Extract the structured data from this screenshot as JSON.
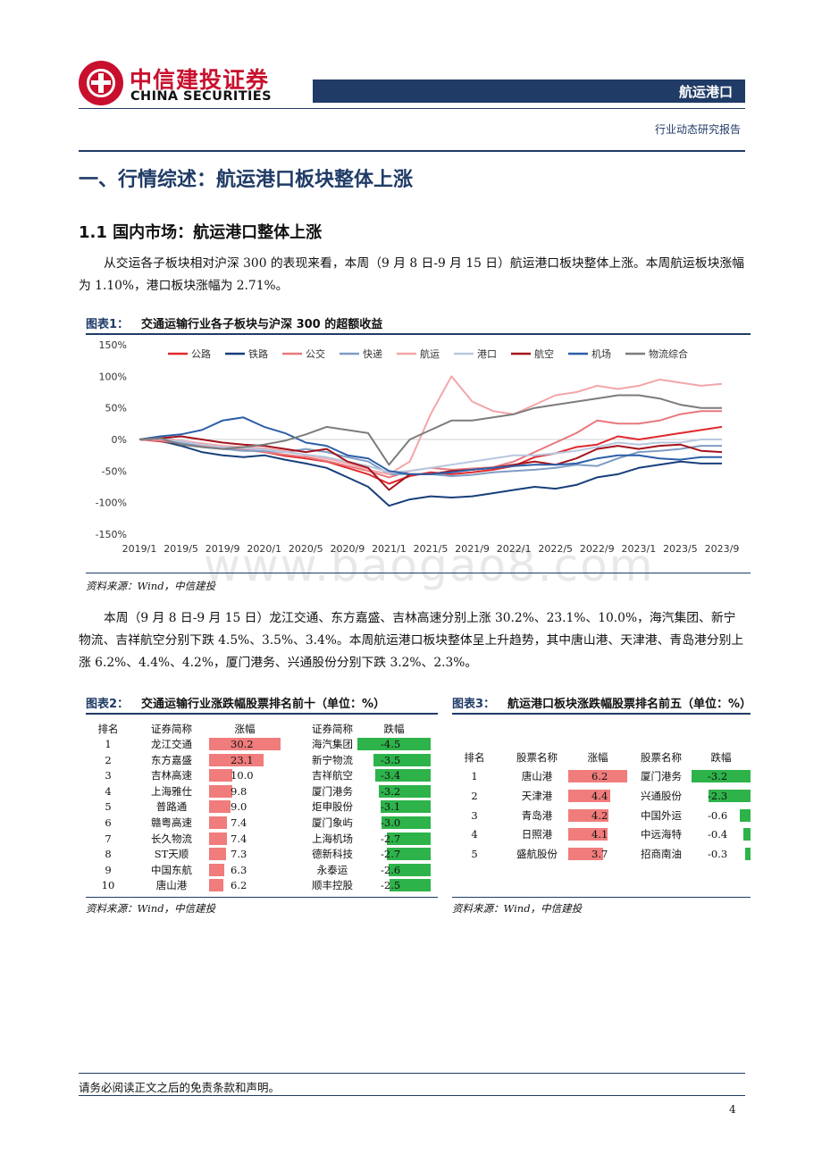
{
  "header": {
    "logo_cn": "中信建投证券",
    "logo_en": "CHINA SECURITIES",
    "section": "航运港口",
    "report_type": "行业动态研究报告"
  },
  "section_title": "一、行情综述：航运港口板块整体上涨",
  "subsection_title": "1.1 国内市场：航运港口整体上涨",
  "para1": "从交运各子板块相对沪深 300 的表现来看，本周（9 月 8 日-9 月 15 日）航运港口板块整体上涨。本周航运板块涨幅为 1.10%，港口板块涨幅为 2.71%。",
  "fig1": {
    "num": "图表1：",
    "title": "交通运输行业各子板块与沪深 300 的超额收益",
    "source": "资料来源：Wind，中信建投"
  },
  "para2": "本周（9 月 8 日-9 月 15 日）龙江交通、东方嘉盛、吉林高速分别上涨 30.2%、23.1%、10.0%，海汽集团、新宁物流、吉祥航空分别下跌 4.5%、3.5%、3.4%。本周航运港口板块整体呈上升趋势，其中唐山港、天津港、青岛港分别上涨 6.2%、4.4%、4.2%，厦门港务、兴通股份分别下跌 3.2%、2.3%。",
  "fig2": {
    "num": "图表2：",
    "title": "交通运输行业涨跌幅股票排名前十（单位：%）",
    "headers": [
      "排名",
      "证券简称",
      "涨幅",
      "证券简称",
      "跌幅"
    ],
    "rows": [
      {
        "rank": "1",
        "up_name": "龙江交通",
        "up": 30.2,
        "up_label": "30.2",
        "down_name": "海汽集团",
        "down": -4.5,
        "down_label": "-4.5"
      },
      {
        "rank": "2",
        "up_name": "东方嘉盛",
        "up": 23.1,
        "up_label": "23.1",
        "down_name": "新宁物流",
        "down": -3.5,
        "down_label": "-3.5"
      },
      {
        "rank": "3",
        "up_name": "吉林高速",
        "up": 10.0,
        "up_label": "10.0",
        "down_name": "吉祥航空",
        "down": -3.4,
        "down_label": "-3.4"
      },
      {
        "rank": "4",
        "up_name": "上海雅仕",
        "up": 9.8,
        "up_label": "9.8",
        "down_name": "厦门港务",
        "down": -3.2,
        "down_label": "-3.2"
      },
      {
        "rank": "5",
        "up_name": "普路通",
        "up": 9.0,
        "up_label": "9.0",
        "down_name": "炬申股份",
        "down": -3.1,
        "down_label": "-3.1"
      },
      {
        "rank": "6",
        "up_name": "赣粤高速",
        "up": 7.4,
        "up_label": "7.4",
        "down_name": "厦门象屿",
        "down": -3.0,
        "down_label": "-3.0"
      },
      {
        "rank": "7",
        "up_name": "长久物流",
        "up": 7.4,
        "up_label": "7.4",
        "down_name": "上海机场",
        "down": -2.7,
        "down_label": "-2.7"
      },
      {
        "rank": "8",
        "up_name": "ST天顺",
        "up": 7.3,
        "up_label": "7.3",
        "down_name": "德新科技",
        "down": -2.7,
        "down_label": "-2.7"
      },
      {
        "rank": "9",
        "up_name": "中国东航",
        "up": 6.3,
        "up_label": "6.3",
        "down_name": "永泰运",
        "down": -2.6,
        "down_label": "-2.6"
      },
      {
        "rank": "10",
        "up_name": "唐山港",
        "up": 6.2,
        "up_label": "6.2",
        "down_name": "顺丰控股",
        "down": -2.5,
        "down_label": "-2.5"
      }
    ],
    "source": "资料来源：Wind，中信建投"
  },
  "fig3": {
    "num": "图表3：",
    "title": "航运港口板块涨跌幅股票排名前五（单位：%）",
    "headers": [
      "排名",
      "股票名称",
      "涨幅",
      "股票名称",
      "跌幅"
    ],
    "rows": [
      {
        "rank": "1",
        "up_name": "唐山港",
        "up": 6.2,
        "up_label": "6.2",
        "down_name": "厦门港务",
        "down": -3.2,
        "down_label": "-3.2"
      },
      {
        "rank": "2",
        "up_name": "天津港",
        "up": 4.4,
        "up_label": "4.4",
        "down_name": "兴通股份",
        "down": -2.3,
        "down_label": "-2.3"
      },
      {
        "rank": "3",
        "up_name": "青岛港",
        "up": 4.2,
        "up_label": "4.2",
        "down_name": "中国外运",
        "down": -0.6,
        "down_label": "-0.6"
      },
      {
        "rank": "4",
        "up_name": "日照港",
        "up": 4.1,
        "up_label": "4.1",
        "down_name": "中远海特",
        "down": -0.4,
        "down_label": "-0.4"
      },
      {
        "rank": "5",
        "up_name": "盛航股份",
        "up": 3.7,
        "up_label": "3.7",
        "down_name": "招商南油",
        "down": -0.3,
        "down_label": "-0.3"
      }
    ],
    "source": "资料来源：Wind，中信建投"
  },
  "chart_data": {
    "type": "line",
    "title": "",
    "xlabel": "",
    "ylabel": "",
    "ylim": [
      -150,
      150
    ],
    "yticks": [
      "150%",
      "100%",
      "50%",
      "0%",
      "-50%",
      "-100%",
      "-150%"
    ],
    "ytick_values": [
      150,
      100,
      50,
      0,
      -50,
      -100,
      -150
    ],
    "x_tick_labels": [
      "2019/1",
      "2019/5",
      "2019/9",
      "2020/1",
      "2020/5",
      "2020/9",
      "2021/1",
      "2021/5",
      "2021/9",
      "2022/1",
      "2022/5",
      "2022/9",
      "2023/1",
      "2023/5",
      "2023/9"
    ],
    "x": [
      "2019/1",
      "2019/3",
      "2019/5",
      "2019/7",
      "2019/9",
      "2019/11",
      "2020/1",
      "2020/3",
      "2020/5",
      "2020/7",
      "2020/9",
      "2020/11",
      "2021/1",
      "2021/3",
      "2021/5",
      "2021/7",
      "2021/9",
      "2021/11",
      "2022/1",
      "2022/3",
      "2022/5",
      "2022/7",
      "2022/9",
      "2022/11",
      "2023/1",
      "2023/3",
      "2023/5",
      "2023/7",
      "2023/9"
    ],
    "grid": false,
    "legend_position": "top",
    "series": [
      {
        "name": "公路",
        "color": "#e0292e",
        "values": [
          0,
          -3,
          -8,
          -10,
          -13,
          -16,
          -20,
          -26,
          -30,
          -35,
          -45,
          -55,
          -70,
          -58,
          -52,
          -55,
          -52,
          -48,
          -42,
          -28,
          -22,
          -12,
          -8,
          5,
          0,
          5,
          10,
          15,
          20
        ]
      },
      {
        "name": "铁路",
        "color": "#173f7a",
        "values": [
          0,
          -2,
          -10,
          -20,
          -25,
          -28,
          -25,
          -32,
          -38,
          -45,
          -60,
          -75,
          -105,
          -95,
          -90,
          -92,
          -90,
          -85,
          -80,
          -75,
          -78,
          -72,
          -60,
          -55,
          -45,
          -40,
          -35,
          -38,
          -38
        ]
      },
      {
        "name": "公交",
        "color": "#e8787c",
        "values": [
          0,
          -2,
          -6,
          -10,
          -15,
          -16,
          -20,
          -24,
          -28,
          -34,
          -42,
          -50,
          -60,
          -50,
          -45,
          -48,
          -46,
          -44,
          -35,
          -20,
          -5,
          10,
          30,
          25,
          25,
          30,
          40,
          45,
          45
        ]
      },
      {
        "name": "快递",
        "color": "#7f9cc4",
        "values": [
          0,
          2,
          -5,
          -12,
          -15,
          -18,
          -18,
          -20,
          -15,
          -20,
          -28,
          -35,
          -55,
          -55,
          -55,
          -58,
          -56,
          -52,
          -50,
          -48,
          -45,
          -40,
          -42,
          -30,
          -20,
          -18,
          -15,
          -10,
          -10
        ]
      },
      {
        "name": "航运",
        "color": "#f3a6a8",
        "values": [
          0,
          3,
          -2,
          -6,
          -10,
          -12,
          -14,
          -18,
          -25,
          -30,
          -38,
          -48,
          -55,
          -35,
          40,
          100,
          60,
          45,
          40,
          55,
          70,
          75,
          85,
          80,
          85,
          95,
          90,
          85,
          88
        ]
      },
      {
        "name": "港口",
        "color": "#b8c8e0",
        "values": [
          0,
          1,
          -3,
          -8,
          -12,
          -14,
          -16,
          -20,
          -24,
          -28,
          -35,
          -42,
          -52,
          -50,
          -45,
          -40,
          -35,
          -30,
          -25,
          -25,
          -22,
          -18,
          -12,
          -5,
          -8,
          -5,
          -5,
          0,
          0
        ]
      },
      {
        "name": "航空",
        "color": "#a3131c",
        "values": [
          0,
          2,
          5,
          0,
          -5,
          -8,
          -10,
          -15,
          -20,
          -15,
          -35,
          -45,
          -80,
          -55,
          -55,
          -50,
          -48,
          -45,
          -40,
          -35,
          -40,
          -30,
          -15,
          -10,
          -15,
          -10,
          -8,
          -18,
          -20
        ]
      },
      {
        "name": "机场",
        "color": "#2c5ea8",
        "values": [
          0,
          5,
          8,
          15,
          30,
          35,
          20,
          10,
          -5,
          -10,
          -25,
          -30,
          -50,
          -55,
          -55,
          -52,
          -48,
          -45,
          -42,
          -40,
          -40,
          -38,
          -30,
          -25,
          -25,
          -30,
          -32,
          -28,
          -28
        ]
      },
      {
        "name": "物流综合",
        "color": "#7c7c7c",
        "values": [
          0,
          2,
          -8,
          -12,
          -15,
          -12,
          -8,
          -2,
          8,
          20,
          15,
          10,
          -40,
          0,
          15,
          30,
          30,
          35,
          40,
          50,
          55,
          60,
          65,
          70,
          70,
          65,
          55,
          50,
          50
        ]
      }
    ]
  },
  "watermark": "www.baogao8.com",
  "footer": {
    "disclaimer": "请务必阅读正文之后的免责条款和声明。",
    "page": "4"
  }
}
